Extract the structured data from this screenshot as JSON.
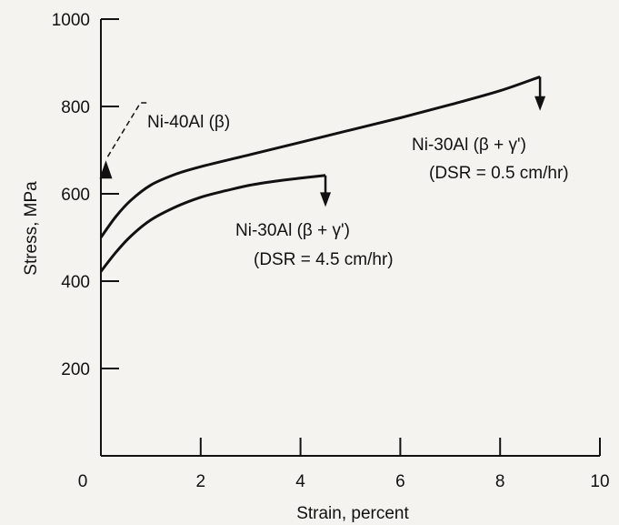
{
  "chart_data": {
    "type": "line",
    "xlabel": "Strain, percent",
    "ylabel": "Stress, MPa",
    "xlim": [
      0,
      10
    ],
    "ylim": [
      0,
      1000
    ],
    "x_ticks": [
      0,
      2,
      4,
      6,
      8,
      10
    ],
    "y_ticks": [
      200,
      400,
      600,
      800,
      1000
    ],
    "grid": false,
    "series": [
      {
        "label_lines": [
          "Ni-30Al (β + γ')",
          "(DSR = 0.5 cm/hr)"
        ],
        "x": [
          0,
          0.3,
          0.6,
          1.0,
          1.5,
          2.0,
          3.0,
          4.0,
          5.0,
          6.0,
          7.0,
          8.0,
          8.8
        ],
        "y": [
          500,
          548,
          585,
          620,
          645,
          662,
          690,
          718,
          746,
          774,
          804,
          836,
          868
        ],
        "fracture": {
          "x": 8.8,
          "y": 868,
          "arrow_to": 790
        }
      },
      {
        "label_lines": [
          "Ni-30Al (β + γ')",
          "(DSR = 4.5 cm/hr)"
        ],
        "x": [
          0,
          0.3,
          0.6,
          1.0,
          1.5,
          2.0,
          2.5,
          3.0,
          3.5,
          4.0,
          4.5
        ],
        "y": [
          422,
          466,
          503,
          540,
          570,
          592,
          607,
          620,
          629,
          636,
          642
        ],
        "fracture": {
          "x": 4.5,
          "y": 642,
          "arrow_to": 570
        }
      }
    ],
    "points": [
      {
        "label": "Ni-40Al (β)",
        "x": 0.1,
        "y": 660,
        "marker": "triangle"
      }
    ]
  }
}
